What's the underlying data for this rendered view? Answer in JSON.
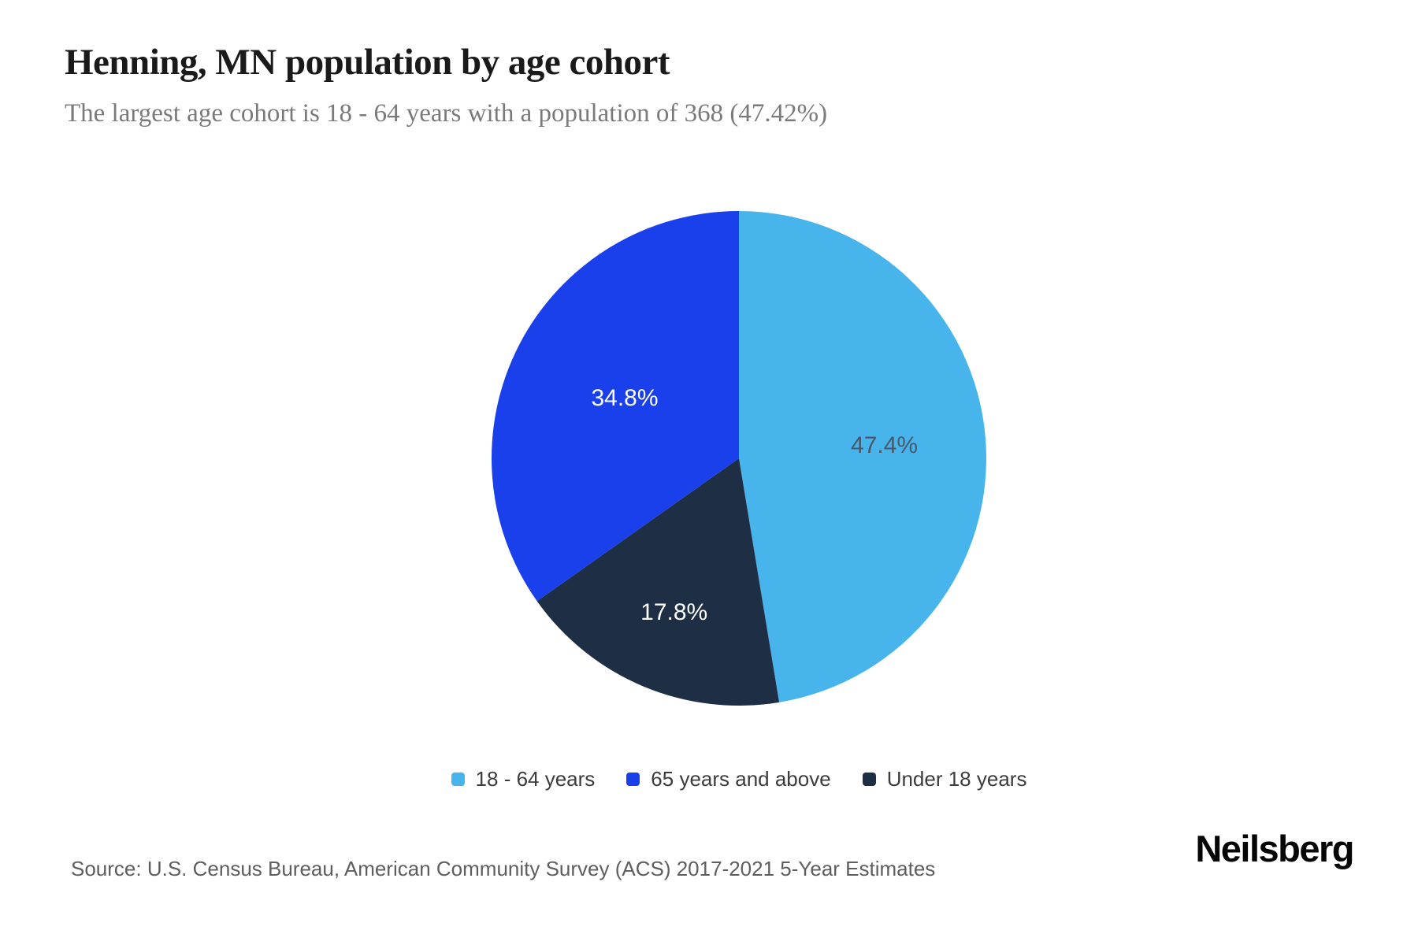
{
  "header": {
    "title": "Henning, MN population by age cohort",
    "subtitle": "The largest age cohort is 18 - 64 years with a population of 368 (47.42%)"
  },
  "chart_data": {
    "type": "pie",
    "title": "Henning, MN population by age cohort",
    "subtitle": "The largest age cohort is 18 - 64 years with a population of 368 (47.42%)",
    "start_angle_deg_cw_from_top": 0,
    "direction": "clockwise",
    "slices": [
      {
        "name": "18 - 64 years",
        "value": 47.4,
        "display_label": "47.4%",
        "color": "#48B4EC",
        "label_color": "#47596A"
      },
      {
        "name": "Under 18 years",
        "value": 17.8,
        "display_label": "17.8%",
        "color": "#1E2E44",
        "label_color": "#FFFFFF"
      },
      {
        "name": "65 years and above",
        "value": 34.8,
        "display_label": "34.8%",
        "color": "#1A40EC",
        "label_color": "#FFFFFF"
      }
    ],
    "legend": {
      "position": "bottom",
      "items": [
        {
          "label": "18 - 64 years",
          "color": "#48B4EC"
        },
        {
          "label": "65 years and above",
          "color": "#1A40EC"
        },
        {
          "label": "Under 18 years",
          "color": "#1E2E44"
        }
      ]
    }
  },
  "footer": {
    "source": "Source: U.S. Census Bureau, American Community Survey (ACS) 2017-2021 5-Year Estimates",
    "brand": "Neilsberg"
  }
}
